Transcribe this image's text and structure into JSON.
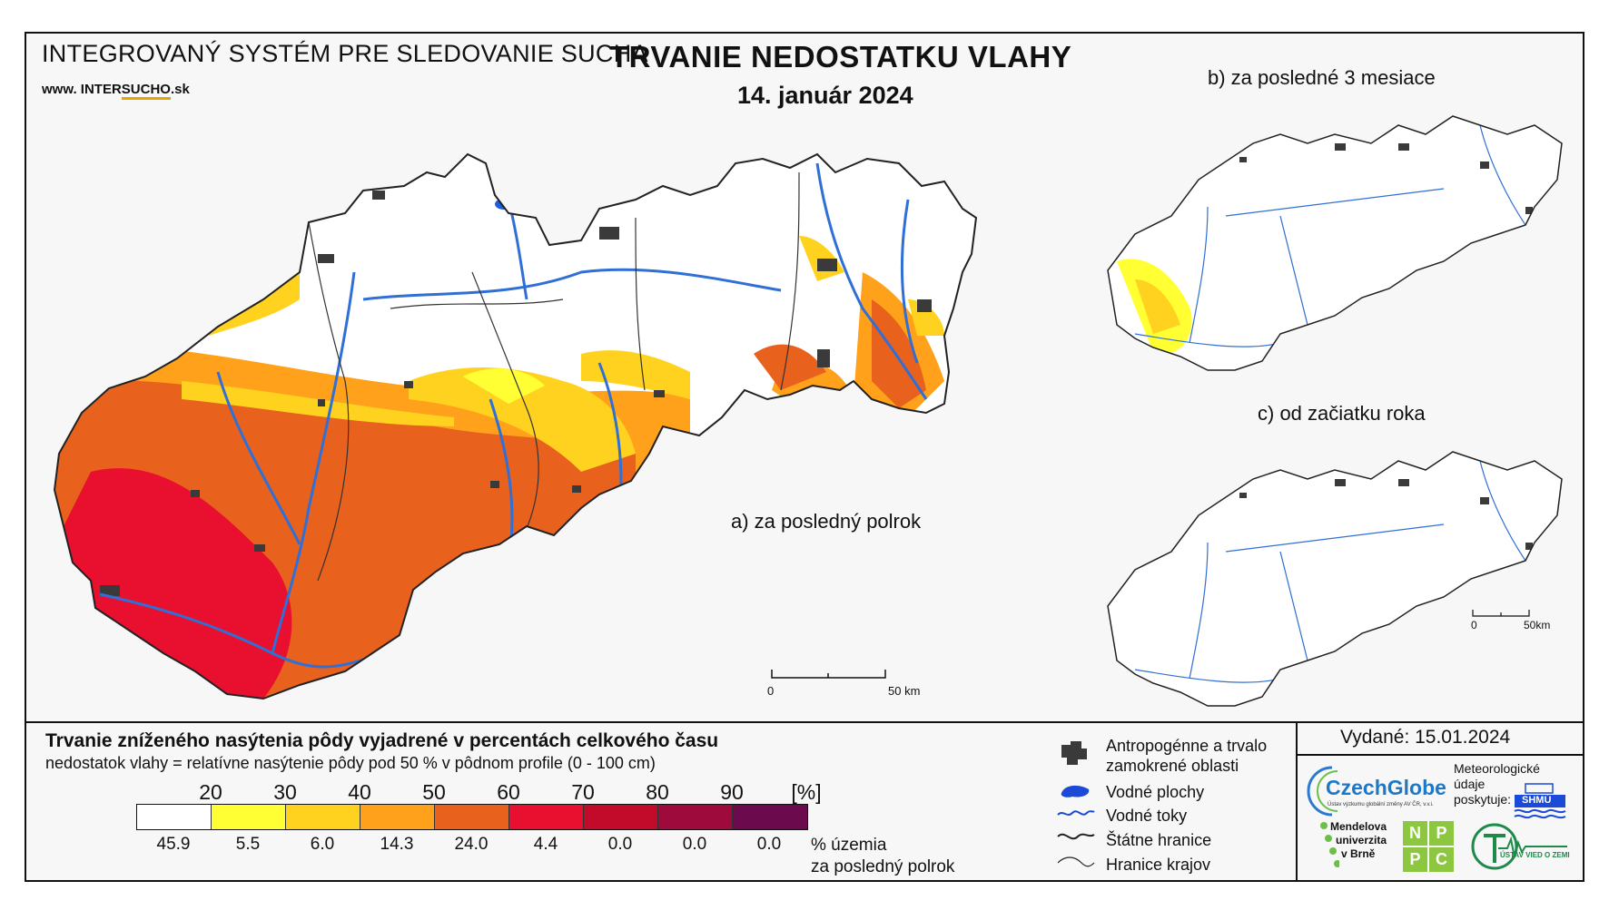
{
  "header": {
    "system_title": "INTEGROVANÝ SYSTÉM PRE SLEDOVANIE SUCHA",
    "website_prefix": "www.",
    "website_name_a": " INTER",
    "website_name_b": "SUCHO",
    "website_suffix": ".sk",
    "main_title": "TRVANIE NEDOSTATKU VLAHY",
    "date": "14. január 2024"
  },
  "panels": {
    "a_label": "a) za posledný polrok",
    "b_label": "b) za posledné 3 mesiace",
    "c_label": "c) od začiatku roka",
    "scale_main": {
      "zero": "0",
      "end": "50 km"
    },
    "scale_small": {
      "zero": "0",
      "end": "50km"
    }
  },
  "legend": {
    "title": "Trvanie zníženého nasýtenia pôdy vyjadrené v percentách celkového času",
    "subtitle": "nedostatok vlahy = relatívne nasýtenie pôdy pod 50 % v pôdnom profile (0 - 100 cm)",
    "ticks": [
      "20",
      "30",
      "40",
      "50",
      "60",
      "70",
      "80",
      "90",
      "[%]"
    ],
    "classes": [
      {
        "color": "#ffffff",
        "percent": "45.9"
      },
      {
        "color": "#ffff33",
        "percent": "5.5"
      },
      {
        "color": "#ffd21f",
        "percent": "6.0"
      },
      {
        "color": "#ffa11a",
        "percent": "14.3"
      },
      {
        "color": "#e8621e",
        "percent": "24.0"
      },
      {
        "color": "#e8102e",
        "percent": "4.4"
      },
      {
        "color": "#c20a2a",
        "percent": "0.0"
      },
      {
        "color": "#9e0a3c",
        "percent": "0.0"
      },
      {
        "color": "#6b0a4c",
        "percent": "0.0"
      }
    ],
    "percent_label_1": "% územia",
    "percent_label_2": "za posledný polrok"
  },
  "symbols": {
    "urban_1": "Antropogénne a trvalo",
    "urban_2": "zamokrené oblasti",
    "water_bodies": "Vodné plochy",
    "rivers": "Vodné toky",
    "state_border": "Štátne hranice",
    "region_border": "Hranice krajov"
  },
  "footer": {
    "issued": "Vydané: 15.01.2024",
    "czechglobe": "CzechGlobe",
    "czechglobe_sub": "Ústav výzkumu globální změny AV ČR, v.v.i.",
    "met_1": "Meteorologické",
    "met_2": "údaje",
    "met_3": "poskytuje:",
    "shmu": "SHMÚ",
    "mendel_1": "Mendelova",
    "mendel_2": "univerzita",
    "mendel_3": "v Brně",
    "nppc_letters": [
      "N",
      "P",
      "P",
      "C"
    ],
    "uvz": "ÚSTAV VIED O ZEMI"
  },
  "colors": {
    "river": "#2f6fd6",
    "urban": "#3a3a3a",
    "border": "#222222",
    "frame_bg": "#f7f7f7"
  }
}
